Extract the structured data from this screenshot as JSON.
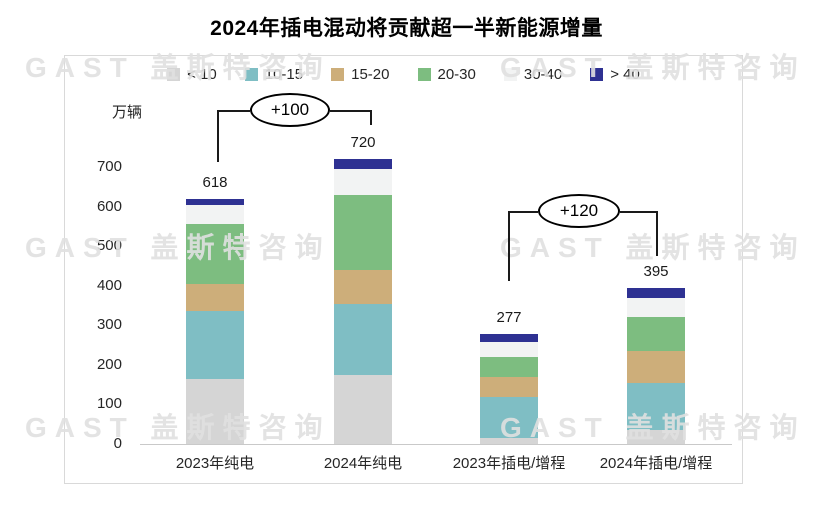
{
  "title": "2024年插电混动将贡献超一半新能源增量",
  "watermark": {
    "text": "GAST 盖斯特咨询"
  },
  "y_axis": {
    "unit_label": "万辆",
    "ticks": [
      0,
      100,
      200,
      300,
      400,
      500,
      600,
      700
    ]
  },
  "chart_data": {
    "type": "bar",
    "stacked": true,
    "title": "2024年插电混动将贡献超一半新能源增量",
    "ylabel": "万辆",
    "ylim": [
      0,
      750
    ],
    "grid": false,
    "legend_position": "top",
    "categories": [
      "2023年纯电",
      "2024年纯电",
      "2023年插电/增程",
      "2024年插电/增程"
    ],
    "totals": [
      618,
      720,
      277,
      395
    ],
    "series": [
      {
        "name": "< 10",
        "color": "#d5d5d5",
        "values": [
          165,
          175,
          15,
          35
        ]
      },
      {
        "name": "10-15",
        "color": "#7fbec4",
        "values": [
          170,
          180,
          105,
          120
        ]
      },
      {
        "name": "15-20",
        "color": "#cdae7a",
        "values": [
          70,
          85,
          50,
          80
        ]
      },
      {
        "name": "20-30",
        "color": "#7dbd80",
        "values": [
          150,
          190,
          50,
          85
        ]
      },
      {
        "name": "30-40",
        "color": "#f2f3f3",
        "values": [
          48,
          65,
          37,
          50
        ]
      },
      {
        "name": "> 40",
        "color": "#2e3192",
        "values": [
          15,
          25,
          20,
          25
        ]
      }
    ],
    "annotations": [
      {
        "text": "+100",
        "between": [
          "2023年纯电",
          "2024年纯电"
        ]
      },
      {
        "text": "+120",
        "between": [
          "2023年插电/增程",
          "2024年插电/增程"
        ]
      }
    ]
  }
}
